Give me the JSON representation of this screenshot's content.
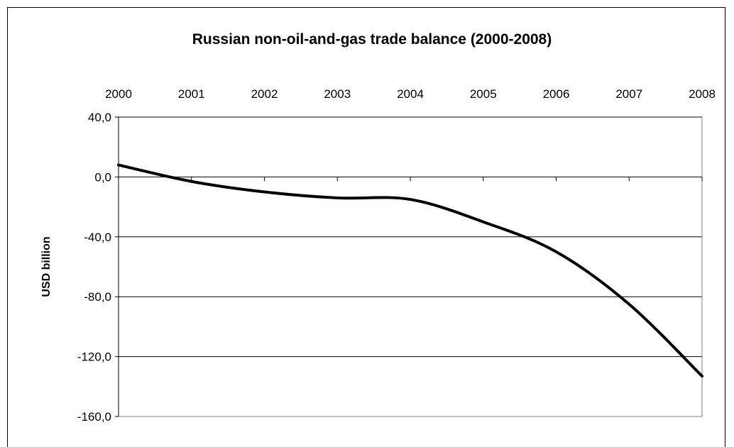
{
  "chart_data": {
    "type": "line",
    "title": "Russian non-oil-and-gas trade balance (2000-2008)",
    "xlabel": "",
    "ylabel": "USD billion",
    "x_axis_position": "top",
    "categories": [
      "2000",
      "2001",
      "2002",
      "2003",
      "2004",
      "2005",
      "2006",
      "2007",
      "2008"
    ],
    "y_ticks": [
      "40,0",
      "0,0",
      "-40,0",
      "-80,0",
      "-120,0",
      "-160,0"
    ],
    "y_tick_values": [
      40,
      0,
      -40,
      -80,
      -120,
      -160
    ],
    "ylim": [
      -160,
      40
    ],
    "grid": "horizontal",
    "legend": "none",
    "series": [
      {
        "values": [
          8,
          -3,
          -10,
          -14,
          -15,
          -30,
          -50,
          -85,
          -133
        ]
      }
    ],
    "line_color": "#000000"
  }
}
